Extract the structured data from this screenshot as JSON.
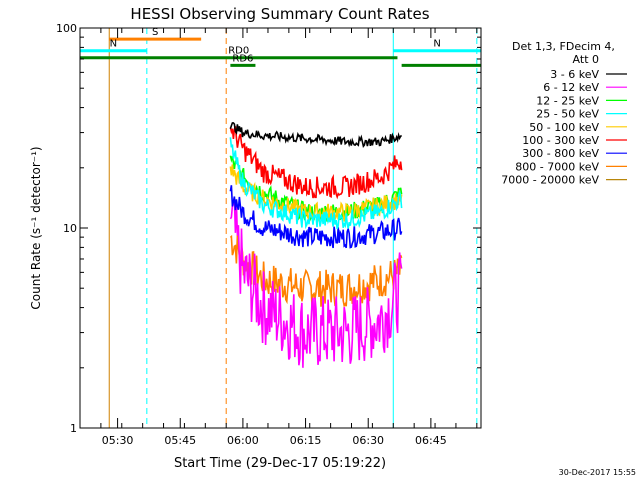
{
  "chart_data": {
    "type": "line",
    "title": "HESSI Observing Summary Count Rates",
    "xlabel": "Start Time (29-Dec-17 05:19:22)",
    "ylabel": "Count Rate (s⁻¹ detector⁻¹)",
    "x_range_minutes": [
      "05:21",
      "06:57"
    ],
    "ylim": [
      1,
      100
    ],
    "y_scale": "log",
    "x_ticks": [
      "05:30",
      "05:45",
      "06:00",
      "06:15",
      "06:30",
      "06:45"
    ],
    "y_ticks": [
      "1",
      "10",
      "100"
    ],
    "legend_header": [
      "Det 1,3, FDecim 4,",
      "Att 0"
    ],
    "legend_placement": "right",
    "timestamp": "30-Dec-2017 15:55",
    "series": [
      {
        "name": "3 - 6 keV",
        "color": "#000000",
        "points": [
          [
            "05:57",
            33
          ],
          [
            "06:00",
            30
          ],
          [
            "06:05",
            29
          ],
          [
            "06:15",
            28
          ],
          [
            "06:25",
            27
          ],
          [
            "06:33",
            27
          ],
          [
            "06:38",
            29
          ]
        ]
      },
      {
        "name": "6 - 12 keV",
        "color": "#ff00ff",
        "points": [
          [
            "05:57",
            12
          ],
          [
            "06:00",
            6
          ],
          [
            "06:05",
            4
          ],
          [
            "06:15",
            3
          ],
          [
            "06:25",
            3
          ],
          [
            "06:33",
            3.5
          ],
          [
            "06:38",
            5
          ]
        ]
      },
      {
        "name": "12 - 25 keV",
        "color": "#00ff00",
        "points": [
          [
            "05:57",
            22
          ],
          [
            "06:00",
            18
          ],
          [
            "06:05",
            15
          ],
          [
            "06:15",
            12
          ],
          [
            "06:25",
            12
          ],
          [
            "06:33",
            13
          ],
          [
            "06:38",
            15
          ]
        ]
      },
      {
        "name": "25 - 50 keV",
        "color": "#00ffff",
        "points": [
          [
            "05:57",
            26
          ],
          [
            "06:00",
            17
          ],
          [
            "06:05",
            13
          ],
          [
            "06:15",
            11
          ],
          [
            "06:25",
            11
          ],
          [
            "06:33",
            12
          ],
          [
            "06:38",
            14
          ]
        ]
      },
      {
        "name": "50 - 100 keV",
        "color": "#ffcc00",
        "points": [
          [
            "05:57",
            20
          ],
          [
            "06:00",
            16
          ],
          [
            "06:05",
            14
          ],
          [
            "06:15",
            12
          ],
          [
            "06:25",
            12
          ],
          [
            "06:33",
            13
          ],
          [
            "06:38",
            14
          ]
        ]
      },
      {
        "name": "100 - 300 keV",
        "color": "#ff0000",
        "points": [
          [
            "05:57",
            32
          ],
          [
            "06:00",
            25
          ],
          [
            "06:05",
            19
          ],
          [
            "06:15",
            16
          ],
          [
            "06:25",
            16
          ],
          [
            "06:33",
            18
          ],
          [
            "06:38",
            22
          ]
        ]
      },
      {
        "name": "300 - 800 keV",
        "color": "#0000ff",
        "points": [
          [
            "05:57",
            15
          ],
          [
            "06:00",
            12
          ],
          [
            "06:05",
            10
          ],
          [
            "06:15",
            9
          ],
          [
            "06:25",
            9
          ],
          [
            "06:33",
            9.5
          ],
          [
            "06:38",
            10
          ]
        ]
      },
      {
        "name": "800 - 7000 keV",
        "color": "#ff8000",
        "points": [
          [
            "05:57",
            9
          ],
          [
            "06:00",
            7
          ],
          [
            "06:05",
            5.5
          ],
          [
            "06:15",
            5
          ],
          [
            "06:25",
            5
          ],
          [
            "06:33",
            5.5
          ],
          [
            "06:38",
            6
          ]
        ]
      },
      {
        "name": "7000 - 20000 keV",
        "color": "#b8860b",
        "points": []
      }
    ],
    "flags": [
      {
        "label": "S",
        "color": "#ff8000",
        "start": "05:28",
        "end": "05:50",
        "level": 88
      },
      {
        "label": "N",
        "color": "#00ffff",
        "start": "05:21",
        "end": "05:37",
        "level": 77
      },
      {
        "label": "N",
        "color": "#00ffff",
        "start": "06:36",
        "end": "06:57",
        "level": 77
      },
      {
        "label": "RD0",
        "color": "#008000",
        "start": "05:21",
        "end": "06:37",
        "level": 71
      },
      {
        "label": "RD6",
        "color": "#008000",
        "start": "05:57",
        "end": "06:03",
        "level": 65
      },
      {
        "label": "",
        "color": "#008000",
        "start": "06:38",
        "end": "06:57",
        "level": 65
      }
    ],
    "vlines": [
      {
        "time": "05:21",
        "color": "#00ffff",
        "style": "solid"
      },
      {
        "time": "05:28",
        "color": "#d08000",
        "style": "solid"
      },
      {
        "time": "05:37",
        "color": "#00ffff",
        "style": "dashed"
      },
      {
        "time": "05:56",
        "color": "#ff8000",
        "style": "dashed"
      },
      {
        "time": "06:36",
        "color": "#00ffff",
        "style": "solid"
      },
      {
        "time": "06:56",
        "color": "#00ffff",
        "style": "dashed"
      }
    ]
  }
}
